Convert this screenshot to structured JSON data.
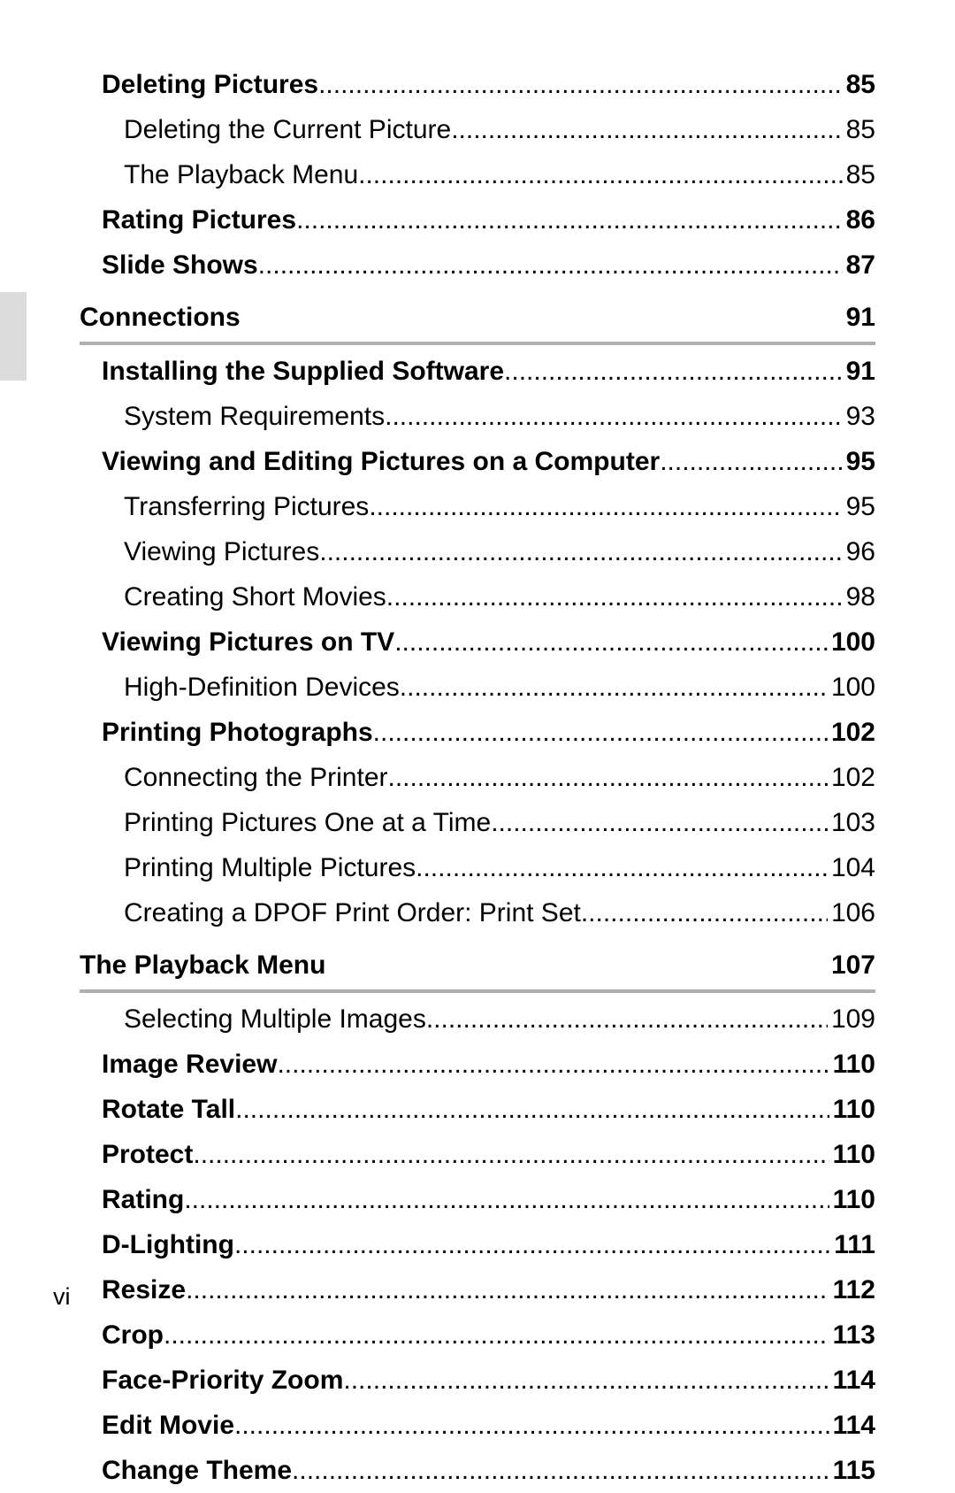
{
  "page_number": "vi",
  "leader_char": ".",
  "entries": [
    {
      "type": "toc",
      "level": 0,
      "title": "Deleting Pictures",
      "page": "85"
    },
    {
      "type": "toc",
      "level": 1,
      "title": "Deleting the Current Picture",
      "page": "85"
    },
    {
      "type": "toc",
      "level": 1,
      "title": "The Playback Menu",
      "page": "85"
    },
    {
      "type": "toc",
      "level": 0,
      "title": "Rating Pictures",
      "page": "86"
    },
    {
      "type": "toc",
      "level": 0,
      "title": "Slide Shows",
      "page": "87"
    },
    {
      "type": "section",
      "title": "Connections",
      "page": "91"
    },
    {
      "type": "toc",
      "level": 0,
      "title": "Installing the Supplied Software",
      "page": "91"
    },
    {
      "type": "toc",
      "level": 1,
      "title": "System Requirements",
      "page": "93"
    },
    {
      "type": "toc",
      "level": 0,
      "title": "Viewing and Editing Pictures on a Computer",
      "page": "95"
    },
    {
      "type": "toc",
      "level": 1,
      "title": "Transferring Pictures",
      "page": "95"
    },
    {
      "type": "toc",
      "level": 1,
      "title": "Viewing Pictures",
      "page": "96"
    },
    {
      "type": "toc",
      "level": 1,
      "title": "Creating Short Movies",
      "page": "98"
    },
    {
      "type": "toc",
      "level": 0,
      "title": "Viewing Pictures on TV",
      "page": "100"
    },
    {
      "type": "toc",
      "level": 1,
      "title": "High-Definition Devices",
      "page": "100"
    },
    {
      "type": "toc",
      "level": 0,
      "title": "Printing Photographs",
      "page": "102"
    },
    {
      "type": "toc",
      "level": 1,
      "title": "Connecting the Printer",
      "page": "102"
    },
    {
      "type": "toc",
      "level": 1,
      "title": "Printing Pictures One at a Time",
      "page": "103"
    },
    {
      "type": "toc",
      "level": 1,
      "title": "Printing Multiple Pictures",
      "page": "104"
    },
    {
      "type": "toc",
      "level": 1,
      "title": "Creating a DPOF Print Order: Print Set",
      "page": "106"
    },
    {
      "type": "section",
      "title": "The Playback Menu",
      "page": "107"
    },
    {
      "type": "toc",
      "level": 1,
      "title": "Selecting Multiple Images",
      "page": "109"
    },
    {
      "type": "toc",
      "level": 0,
      "title": "Image Review",
      "page": "110"
    },
    {
      "type": "toc",
      "level": 0,
      "title": "Rotate Tall",
      "page": "110"
    },
    {
      "type": "toc",
      "level": 0,
      "title": "Protect",
      "page": "110"
    },
    {
      "type": "toc",
      "level": 0,
      "title": "Rating",
      "page": "110"
    },
    {
      "type": "toc",
      "level": 0,
      "title": "D-Lighting",
      "page": "111"
    },
    {
      "type": "toc",
      "level": 0,
      "title": "Resize",
      "page": "112"
    },
    {
      "type": "toc",
      "level": 0,
      "title": "Crop",
      "page": "113"
    },
    {
      "type": "toc",
      "level": 0,
      "title": "Face-Priority Zoom",
      "page": "114"
    },
    {
      "type": "toc",
      "level": 0,
      "title": "Edit Movie",
      "page": "114"
    },
    {
      "type": "toc",
      "level": 0,
      "title": "Change Theme",
      "page": "115"
    }
  ]
}
